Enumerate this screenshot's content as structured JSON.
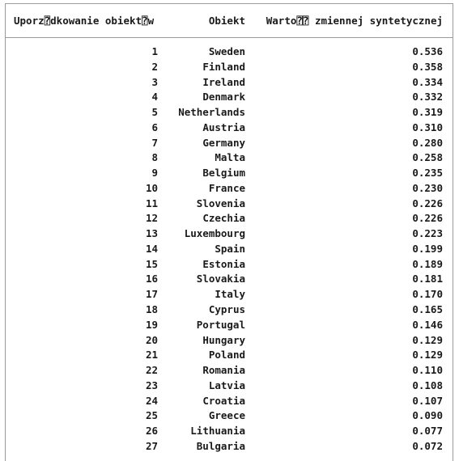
{
  "table": {
    "headers": {
      "rank": "Uporz⍰dkowanie obiekt⍰w",
      "object": "Obiekt",
      "value": "Warto⍰⍰ zmiennej syntetycznej"
    },
    "rows": [
      {
        "rank": "1",
        "object": "Sweden",
        "value": "0.536"
      },
      {
        "rank": "2",
        "object": "Finland",
        "value": "0.358"
      },
      {
        "rank": "3",
        "object": "Ireland",
        "value": "0.334"
      },
      {
        "rank": "4",
        "object": "Denmark",
        "value": "0.332"
      },
      {
        "rank": "5",
        "object": "Netherlands",
        "value": "0.319"
      },
      {
        "rank": "6",
        "object": "Austria",
        "value": "0.310"
      },
      {
        "rank": "7",
        "object": "Germany",
        "value": "0.280"
      },
      {
        "rank": "8",
        "object": "Malta",
        "value": "0.258"
      },
      {
        "rank": "9",
        "object": "Belgium",
        "value": "0.235"
      },
      {
        "rank": "10",
        "object": "France",
        "value": "0.230"
      },
      {
        "rank": "11",
        "object": "Slovenia",
        "value": "0.226"
      },
      {
        "rank": "12",
        "object": "Czechia",
        "value": "0.226"
      },
      {
        "rank": "13",
        "object": "Luxembourg",
        "value": "0.223"
      },
      {
        "rank": "14",
        "object": "Spain",
        "value": "0.199"
      },
      {
        "rank": "15",
        "object": "Estonia",
        "value": "0.189"
      },
      {
        "rank": "16",
        "object": "Slovakia",
        "value": "0.181"
      },
      {
        "rank": "17",
        "object": "Italy",
        "value": "0.170"
      },
      {
        "rank": "18",
        "object": "Cyprus",
        "value": "0.165"
      },
      {
        "rank": "19",
        "object": "Portugal",
        "value": "0.146"
      },
      {
        "rank": "20",
        "object": "Hungary",
        "value": "0.129"
      },
      {
        "rank": "21",
        "object": "Poland",
        "value": "0.129"
      },
      {
        "rank": "22",
        "object": "Romania",
        "value": "0.110"
      },
      {
        "rank": "23",
        "object": "Latvia",
        "value": "0.108"
      },
      {
        "rank": "24",
        "object": "Croatia",
        "value": "0.107"
      },
      {
        "rank": "25",
        "object": "Greece",
        "value": "0.090"
      },
      {
        "rank": "26",
        "object": "Lithuania",
        "value": "0.077"
      },
      {
        "rank": "27",
        "object": "Bulgaria",
        "value": "0.072"
      }
    ]
  }
}
